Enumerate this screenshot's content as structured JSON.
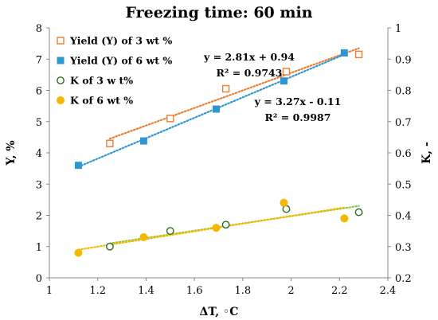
{
  "chart_data": {
    "type": "scatter",
    "title": "Freezing time: 60 min",
    "xlabel": "ΔT, ◦C",
    "ylabel_left": "Y, %",
    "ylabel_right": "K, -",
    "xlim": [
      1,
      2.4
    ],
    "xticks": [
      "1",
      "1.2",
      "1.4",
      "1.6",
      "1.8",
      "2",
      "2.2",
      "2.4"
    ],
    "ylim_left": [
      0,
      8
    ],
    "yticks_left": [
      "0",
      "1",
      "2",
      "3",
      "4",
      "5",
      "6",
      "7",
      "8"
    ],
    "ylim_right": [
      0.2,
      1
    ],
    "yticks_right": [
      "0.2",
      "0.3",
      "0.4",
      "0.5",
      "0.6",
      "0.7",
      "0.8",
      "0.9",
      "1"
    ],
    "grid": false,
    "legend_position": "top-left",
    "series": [
      {
        "name": "Yield (Y) of 3 wt %",
        "axis": "left",
        "marker": "square-open",
        "color": "#ED7D31",
        "x": [
          1.25,
          1.5,
          1.73,
          1.98,
          2.28
        ],
        "y": [
          4.3,
          5.1,
          6.05,
          6.6,
          7.15
        ]
      },
      {
        "name": "Yield (Y) of 6 wt %",
        "axis": "left",
        "marker": "square-filled",
        "color": "#2E96D2",
        "x": [
          1.12,
          1.39,
          1.69,
          1.97,
          2.22
        ],
        "y": [
          3.6,
          4.38,
          5.4,
          6.3,
          7.2
        ]
      },
      {
        "name": "K of 3 w t%",
        "axis": "right",
        "marker": "circle-open",
        "color": "#2E6B1F",
        "x": [
          1.25,
          1.5,
          1.73,
          1.98,
          2.28
        ],
        "y": [
          0.3,
          0.35,
          0.37,
          0.42,
          0.41
        ]
      },
      {
        "name": "K of 6 wt %",
        "axis": "right",
        "marker": "circle-filled",
        "color": "#F5B800",
        "x": [
          1.12,
          1.39,
          1.69,
          1.97,
          2.22
        ],
        "y": [
          0.28,
          0.33,
          0.36,
          0.44,
          0.39
        ]
      }
    ],
    "trendlines": [
      {
        "series": "Yield (Y) of 3 wt %",
        "color": "#ED7D31",
        "slope": 2.81,
        "intercept": 0.94,
        "x_range": [
          1.25,
          2.28
        ]
      },
      {
        "series": "Yield (Y) of 6 wt %",
        "color": "#2E96D2",
        "slope": 3.27,
        "intercept": -0.11,
        "x_range": [
          1.12,
          2.22
        ]
      },
      {
        "series": "K of 3 w t%",
        "color": "#8DC63F",
        "axis": "right",
        "x_range": [
          1.25,
          2.28
        ],
        "y_range": [
          0.31,
          0.43
        ]
      },
      {
        "series": "K of 6 wt %",
        "color": "#F5B800",
        "axis": "right",
        "x_range": [
          1.12,
          2.22
        ],
        "y_range": [
          0.29,
          0.425
        ]
      }
    ],
    "annotations": [
      {
        "id": "eq1",
        "lines": [
          "y = 2.81x + 0.94",
          "R² = 0.9743"
        ]
      },
      {
        "id": "eq2",
        "lines": [
          "y = 3.27x - 0.11",
          "R² = 0.9987"
        ]
      }
    ]
  }
}
